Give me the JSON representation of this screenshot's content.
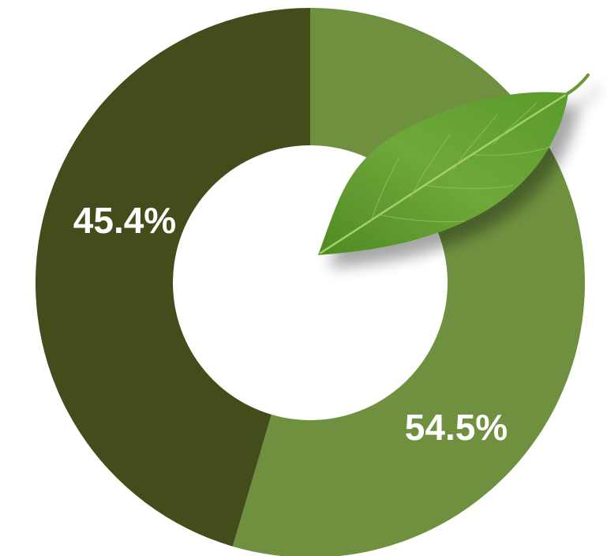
{
  "chart_data": {
    "type": "pie",
    "values": [
      54.5,
      45.4
    ],
    "value_labels": [
      "54.5%",
      "45.4%"
    ],
    "colors": [
      "#6f913f",
      "#434d1b"
    ]
  }
}
